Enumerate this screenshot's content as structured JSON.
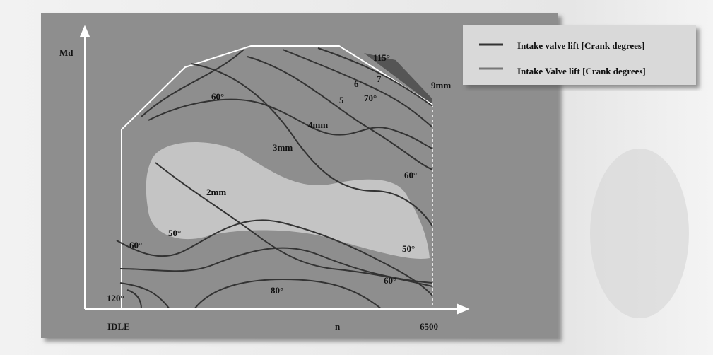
{
  "axes": {
    "y_label": "Md",
    "x_labels": [
      "IDLE",
      "n",
      "6500"
    ]
  },
  "legend": [
    "Intake valve lift [Crank degrees]",
    "Intake Valve lift [Crank degrees]"
  ],
  "curve_labels": [
    "115°",
    "7",
    "6",
    "9mm",
    "70°",
    "5",
    "60°",
    "4mm",
    "3mm",
    "60°",
    "2mm",
    "50°",
    "60°",
    "50°",
    "60°",
    "80°",
    "120°"
  ]
}
